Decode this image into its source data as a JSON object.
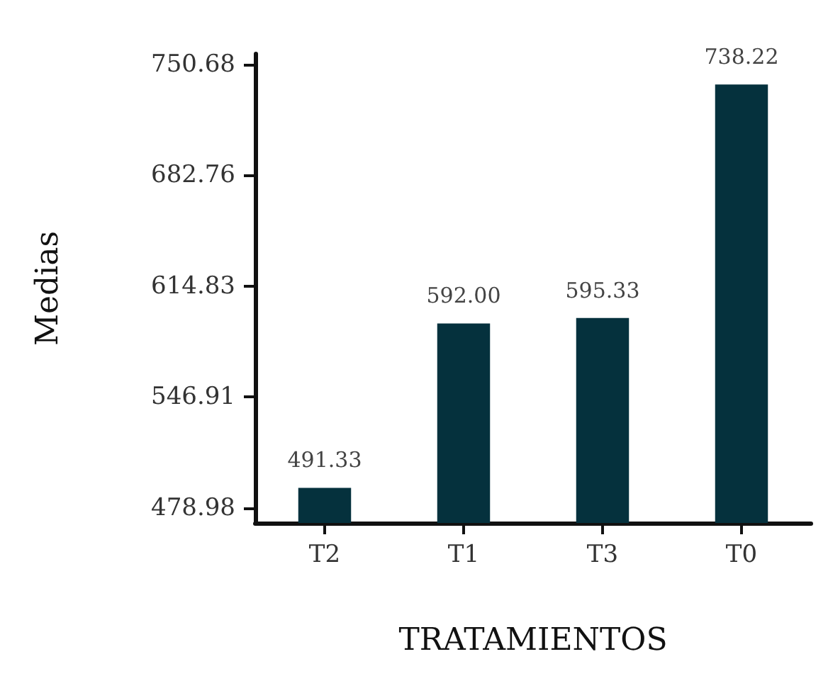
{
  "chart_data": {
    "type": "bar",
    "xlabel": "TRATAMIENTOS",
    "ylabel": "Medias",
    "categories": [
      "T2",
      "T1",
      "T3",
      "T0"
    ],
    "values": [
      491.33,
      592.0,
      595.33,
      738.22
    ],
    "value_labels": [
      "491.33",
      "592.00",
      "595.33",
      "738.22"
    ],
    "color": "#05313d",
    "ylim": [
      469.84,
      757
    ],
    "yticks": [
      478.98,
      546.91,
      614.83,
      682.76,
      750.68
    ],
    "grid": false
  }
}
